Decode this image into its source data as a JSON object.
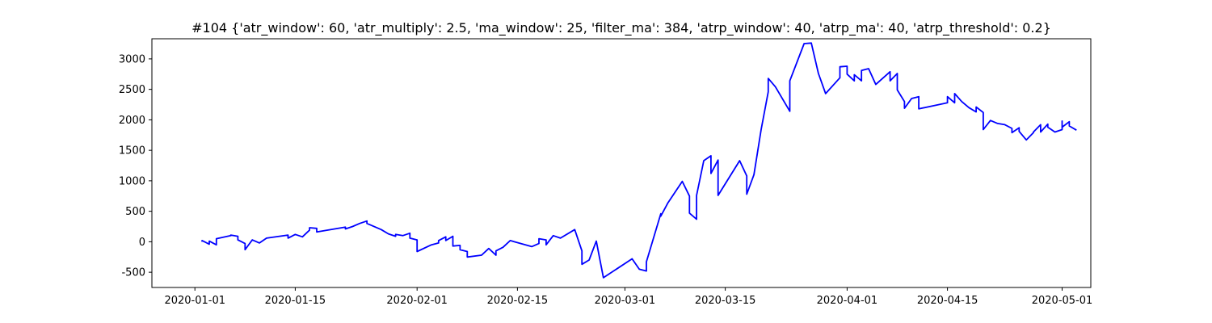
{
  "chart_data": {
    "type": "line",
    "title": "#104 {'atr_window': 60, 'atr_multiply': 2.5, 'ma_window': 25, 'filter_ma': 384, 'atrp_window': 40, 'atrp_ma': 40, 'atrp_threshold': 0.2}",
    "xlabel": "",
    "ylabel": "",
    "xlim": [
      "2019-12-26",
      "2020-05-05"
    ],
    "ylim": [
      -750,
      3330
    ],
    "grid": false,
    "legend": "none",
    "x_ticks": [
      "2020-01-01",
      "2020-01-15",
      "2020-02-01",
      "2020-02-15",
      "2020-03-01",
      "2020-03-15",
      "2020-04-01",
      "2020-04-15",
      "2020-05-01"
    ],
    "y_ticks": [
      -500,
      0,
      500,
      1000,
      1500,
      2000,
      2500,
      3000
    ],
    "series": [
      {
        "color": "#0000ff",
        "points": [
          [
            "2020-01-02",
            0
          ],
          [
            "2020-01-02",
            20
          ],
          [
            "2020-01-03",
            -40
          ],
          [
            "2020-01-03",
            10
          ],
          [
            "2020-01-04",
            -50
          ],
          [
            "2020-01-04",
            50
          ],
          [
            "2020-01-06",
            100
          ],
          [
            "2020-01-06",
            110
          ],
          [
            "2020-01-07",
            90
          ],
          [
            "2020-01-07",
            30
          ],
          [
            "2020-01-08",
            -30
          ],
          [
            "2020-01-08",
            -130
          ],
          [
            "2020-01-09",
            30
          ],
          [
            "2020-01-10",
            -20
          ],
          [
            "2020-01-11",
            60
          ],
          [
            "2020-01-14",
            110
          ],
          [
            "2020-01-14",
            60
          ],
          [
            "2020-01-15",
            120
          ],
          [
            "2020-01-16",
            80
          ],
          [
            "2020-01-17",
            190
          ],
          [
            "2020-01-17",
            230
          ],
          [
            "2020-01-18",
            220
          ],
          [
            "2020-01-18",
            160
          ],
          [
            "2020-01-21",
            220
          ],
          [
            "2020-01-22",
            240
          ],
          [
            "2020-01-22",
            210
          ],
          [
            "2020-01-23",
            250
          ],
          [
            "2020-01-24",
            300
          ],
          [
            "2020-01-25",
            340
          ],
          [
            "2020-01-25",
            300
          ],
          [
            "2020-01-27",
            200
          ],
          [
            "2020-01-28",
            130
          ],
          [
            "2020-01-29",
            90
          ],
          [
            "2020-01-29",
            120
          ],
          [
            "2020-01-30",
            100
          ],
          [
            "2020-01-31",
            140
          ],
          [
            "2020-01-31",
            60
          ],
          [
            "2020-02-01",
            30
          ],
          [
            "2020-02-01",
            -160
          ],
          [
            "2020-02-03",
            -50
          ],
          [
            "2020-02-04",
            -20
          ],
          [
            "2020-02-04",
            20
          ],
          [
            "2020-02-05",
            80
          ],
          [
            "2020-02-05",
            20
          ],
          [
            "2020-02-06",
            90
          ],
          [
            "2020-02-06",
            -70
          ],
          [
            "2020-02-07",
            -60
          ],
          [
            "2020-02-07",
            -130
          ],
          [
            "2020-02-08",
            -160
          ],
          [
            "2020-02-08",
            -250
          ],
          [
            "2020-02-10",
            -220
          ],
          [
            "2020-02-11",
            -110
          ],
          [
            "2020-02-12",
            -220
          ],
          [
            "2020-02-12",
            -150
          ],
          [
            "2020-02-13",
            -90
          ],
          [
            "2020-02-14",
            20
          ],
          [
            "2020-02-17",
            -80
          ],
          [
            "2020-02-18",
            -30
          ],
          [
            "2020-02-18",
            50
          ],
          [
            "2020-02-19",
            30
          ],
          [
            "2020-02-19",
            -50
          ],
          [
            "2020-02-20",
            100
          ],
          [
            "2020-02-21",
            60
          ],
          [
            "2020-02-23",
            200
          ],
          [
            "2020-02-24",
            -150
          ],
          [
            "2020-02-24",
            -370
          ],
          [
            "2020-02-25",
            -300
          ],
          [
            "2020-02-26",
            10
          ],
          [
            "2020-02-27",
            -590
          ],
          [
            "2020-03-02",
            -280
          ],
          [
            "2020-03-03",
            -450
          ],
          [
            "2020-03-04",
            -480
          ],
          [
            "2020-03-04",
            -330
          ],
          [
            "2020-03-06",
            460
          ],
          [
            "2020-03-06",
            420
          ],
          [
            "2020-03-07",
            640
          ],
          [
            "2020-03-09",
            990
          ],
          [
            "2020-03-10",
            750
          ],
          [
            "2020-03-10",
            470
          ],
          [
            "2020-03-11",
            370
          ],
          [
            "2020-03-11",
            760
          ],
          [
            "2020-03-12",
            1330
          ],
          [
            "2020-03-13",
            1410
          ],
          [
            "2020-03-13",
            1120
          ],
          [
            "2020-03-14",
            1340
          ],
          [
            "2020-03-14",
            760
          ],
          [
            "2020-03-17",
            1330
          ],
          [
            "2020-03-18",
            1080
          ],
          [
            "2020-03-18",
            780
          ],
          [
            "2020-03-19",
            1100
          ],
          [
            "2020-03-20",
            1840
          ],
          [
            "2020-03-21",
            2460
          ],
          [
            "2020-03-21",
            2680
          ],
          [
            "2020-03-22",
            2540
          ],
          [
            "2020-03-24",
            2140
          ],
          [
            "2020-03-24",
            2640
          ],
          [
            "2020-03-26",
            3250
          ],
          [
            "2020-03-27",
            3260
          ],
          [
            "2020-03-28",
            2760
          ],
          [
            "2020-03-29",
            2430
          ],
          [
            "2020-03-31",
            2690
          ],
          [
            "2020-03-31",
            2870
          ],
          [
            "2020-04-01",
            2880
          ],
          [
            "2020-04-01",
            2750
          ],
          [
            "2020-04-02",
            2640
          ],
          [
            "2020-04-02",
            2740
          ],
          [
            "2020-04-03",
            2640
          ],
          [
            "2020-04-03",
            2810
          ],
          [
            "2020-04-04",
            2840
          ],
          [
            "2020-04-05",
            2580
          ],
          [
            "2020-04-07",
            2790
          ],
          [
            "2020-04-07",
            2640
          ],
          [
            "2020-04-08",
            2760
          ],
          [
            "2020-04-08",
            2490
          ],
          [
            "2020-04-09",
            2300
          ],
          [
            "2020-04-09",
            2190
          ],
          [
            "2020-04-10",
            2350
          ],
          [
            "2020-04-11",
            2380
          ],
          [
            "2020-04-11",
            2180
          ],
          [
            "2020-04-15",
            2280
          ],
          [
            "2020-04-15",
            2380
          ],
          [
            "2020-04-16",
            2280
          ],
          [
            "2020-04-16",
            2430
          ],
          [
            "2020-04-17",
            2300
          ],
          [
            "2020-04-18",
            2200
          ],
          [
            "2020-04-19",
            2130
          ],
          [
            "2020-04-19",
            2210
          ],
          [
            "2020-04-20",
            2120
          ],
          [
            "2020-04-20",
            1840
          ],
          [
            "2020-04-21",
            1990
          ],
          [
            "2020-04-22",
            1940
          ],
          [
            "2020-04-23",
            1920
          ],
          [
            "2020-04-24",
            1860
          ],
          [
            "2020-04-24",
            1790
          ],
          [
            "2020-04-25",
            1870
          ],
          [
            "2020-04-25",
            1810
          ],
          [
            "2020-04-26",
            1670
          ],
          [
            "2020-04-27",
            1790
          ],
          [
            "2020-04-27",
            1800
          ],
          [
            "2020-04-28",
            1920
          ],
          [
            "2020-04-28",
            1800
          ],
          [
            "2020-04-29",
            1930
          ],
          [
            "2020-04-29",
            1880
          ],
          [
            "2020-04-30",
            1800
          ],
          [
            "2020-05-01",
            1840
          ],
          [
            "2020-05-01",
            1980
          ],
          [
            "2020-05-01",
            1880
          ],
          [
            "2020-05-02",
            1970
          ],
          [
            "2020-05-02",
            1900
          ],
          [
            "2020-05-03",
            1830
          ]
        ]
      }
    ]
  }
}
